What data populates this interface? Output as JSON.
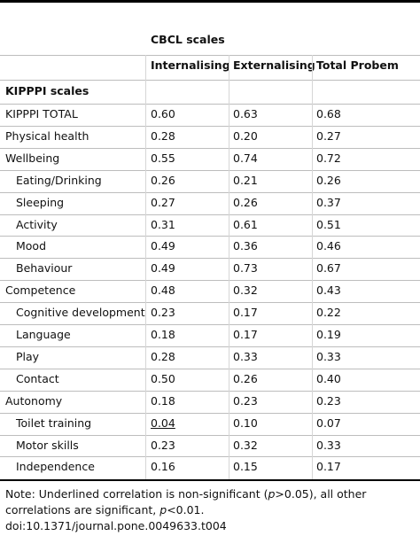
{
  "table": {
    "group_header": "CBCL scales",
    "columns": [
      "Internalising",
      "Externalising",
      "Total Probem"
    ],
    "section": "KIPPPI scales",
    "rows": [
      [
        "KIPPPI TOTAL",
        "0.60",
        "0.63",
        "0.68"
      ],
      [
        "Physical health",
        "0.28",
        "0.20",
        "0.27"
      ],
      [
        "Wellbeing",
        "0.55",
        "0.74",
        "0.72"
      ],
      [
        "Eating/Drinking",
        "0.26",
        "0.21",
        "0.26"
      ],
      [
        "Sleeping",
        "0.27",
        "0.26",
        "0.37"
      ],
      [
        "Activity",
        "0.31",
        "0.61",
        "0.51"
      ],
      [
        "Mood",
        "0.49",
        "0.36",
        "0.46"
      ],
      [
        "Behaviour",
        "0.49",
        "0.73",
        "0.67"
      ],
      [
        "Competence",
        "0.48",
        "0.32",
        "0.43"
      ],
      [
        "Cognitive development",
        "0.23",
        "0.17",
        "0.22"
      ],
      [
        "Language",
        "0.18",
        "0.17",
        "0.19"
      ],
      [
        "Play",
        "0.28",
        "0.33",
        "0.33"
      ],
      [
        "Contact",
        "0.50",
        "0.26",
        "0.40"
      ],
      [
        "Autonomy",
        "0.18",
        "0.23",
        "0.23"
      ],
      [
        "Toilet training",
        "0.04",
        "0.10",
        "0.07"
      ],
      [
        "Motor skills",
        "0.23",
        "0.32",
        "0.33"
      ],
      [
        "Independence",
        "0.16",
        "0.15",
        "0.17"
      ]
    ]
  },
  "note": [
    "Note: Underlined correlation is non-significant (",
    "p",
    ">0.05), all other correlations are significant, ",
    "p",
    "<0.01."
  ],
  "doi": "doi:10.1371/journal.pone.0049633.t004"
}
